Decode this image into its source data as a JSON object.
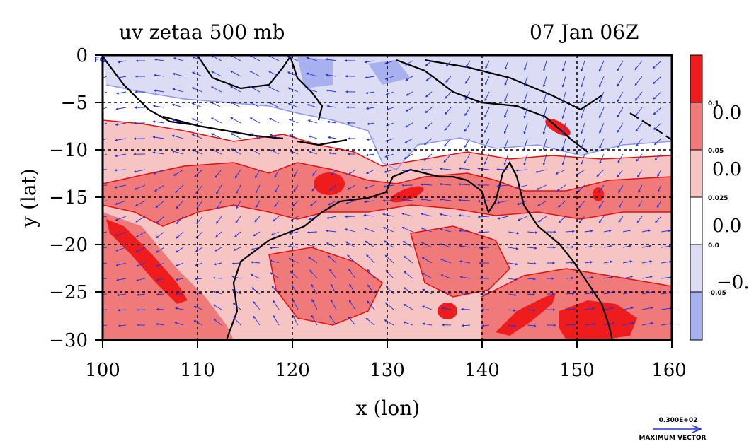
{
  "title_left": "uv zetaa 500 mb",
  "title_right": "07 Jan 06Z",
  "corner_label": "FG",
  "xlabel": "x (lon)",
  "ylabel": "y (lat)",
  "x_ticks": [
    "100",
    "110",
    "120",
    "130",
    "140",
    "150",
    "160"
  ],
  "y_ticks": [
    "0",
    "−5",
    "−10",
    "−15",
    "−20",
    "−25",
    "−30"
  ],
  "colorbar": {
    "levels": [
      {
        "label": "0.1",
        "color": "#ee1c1c"
      },
      {
        "label": "0.05",
        "color": "#f07a7a"
      },
      {
        "label": "0.025",
        "color": "#f7c4c4"
      },
      {
        "label": "0.0",
        "color": "#ffffff"
      },
      {
        "label": "-0.05",
        "color": "#dcdcf5"
      },
      {
        "label": "",
        "color": "#a9b0ef"
      }
    ],
    "side_labels": [
      "0.0",
      "0.0",
      "0.0",
      "−0."
    ]
  },
  "vector_legend": {
    "value": "0.300E+02",
    "caption": "MAXIMUM VECTOR"
  },
  "chart_data": {
    "type": "heatmap",
    "xlim": [
      100,
      160
    ],
    "ylim": [
      -30,
      0
    ],
    "grid": true,
    "overlay": "wind vectors",
    "coastlines": true
  }
}
